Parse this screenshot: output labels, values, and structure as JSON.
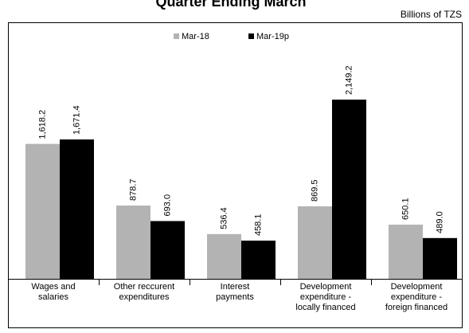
{
  "chart_data": {
    "type": "bar",
    "title": "Quarter Ending March",
    "subtitle": "Billions of TZS",
    "categories": [
      "Wages and\nsalaries",
      "Other reccurent\nexpenditures",
      "Interest\npayments",
      "Development\nexpenditure -\nlocally financed",
      "Development\nexpenditure -\nforeign financed"
    ],
    "series": [
      {
        "name": "Mar-18",
        "color": "#b3b3b3",
        "values": [
          1618.2,
          878.7,
          536.4,
          869.5,
          650.1
        ],
        "value_labels": [
          "1,618.2",
          "878.7",
          "536.4",
          "869.5",
          "650.1"
        ]
      },
      {
        "name": "Mar-19p",
        "color": "#000000",
        "values": [
          1671.4,
          693.0,
          458.1,
          2149.2,
          489.0
        ],
        "value_labels": [
          "1,671.4",
          "693.0",
          "458.1",
          "2,149.2",
          "489.0"
        ]
      }
    ],
    "ylim": [
      0,
      3000
    ],
    "legend": "top"
  }
}
